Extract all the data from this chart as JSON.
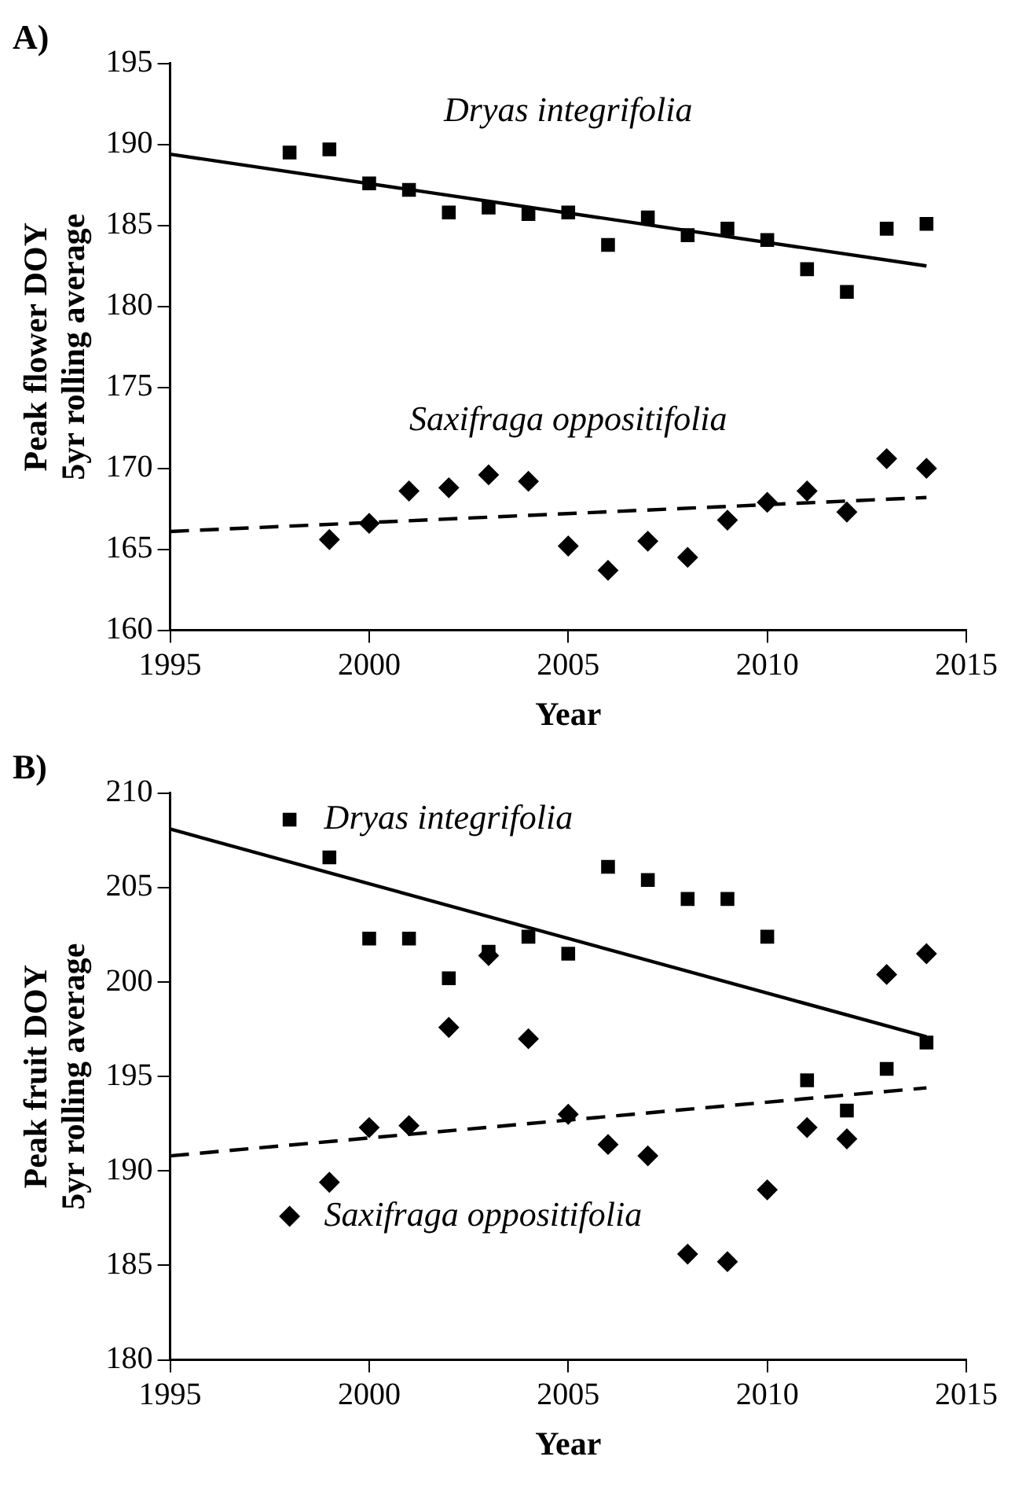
{
  "chart_data": [
    {
      "type": "scatter",
      "title": "A)",
      "xlabel": "Year",
      "ylabel": "Peak flower DOY\n5yr rolling average",
      "xlim": [
        1995,
        2015
      ],
      "xticks": [
        1995,
        2000,
        2005,
        2010,
        2015
      ],
      "ylim": [
        160,
        195
      ],
      "yticks": [
        160,
        165,
        170,
        175,
        180,
        185,
        190,
        195
      ],
      "grid": false,
      "legend": false,
      "series": [
        {
          "name": "Dryas integrifolia",
          "color": "#000000",
          "marker": "square",
          "x": [
            1998,
            1999,
            2000,
            2001,
            2002,
            2003,
            2004,
            2005,
            2006,
            2007,
            2008,
            2009,
            2010,
            2011,
            2012,
            2013,
            2014
          ],
          "values": [
            189.5,
            189.7,
            187.6,
            187.2,
            185.8,
            186.1,
            185.7,
            185.8,
            183.8,
            185.5,
            184.4,
            184.8,
            184.1,
            182.3,
            180.9,
            184.8,
            185.1
          ]
        },
        {
          "name": "Saxifraga oppositifolia",
          "color": "#000000",
          "marker": "diamond",
          "x": [
            1999,
            2000,
            2001,
            2002,
            2003,
            2004,
            2005,
            2006,
            2007,
            2008,
            2009,
            2010,
            2011,
            2012,
            2013,
            2014
          ],
          "values": [
            165.6,
            166.6,
            168.6,
            168.8,
            169.6,
            169.2,
            165.2,
            163.7,
            165.5,
            164.5,
            166.8,
            167.9,
            168.6,
            167.3,
            170.6,
            170.0
          ]
        },
        {
          "type": "line",
          "color": "#000000",
          "line_style": "solid",
          "marker": "none",
          "x": [
            1995,
            2014
          ],
          "values": [
            189.4,
            182.5
          ]
        },
        {
          "type": "line",
          "color": "#000000",
          "line_style": "dashed",
          "marker": "none",
          "x": [
            1995,
            2014
          ],
          "values": [
            166.1,
            168.2
          ]
        }
      ]
    },
    {
      "type": "scatter",
      "title": "B)",
      "xlabel": "Year",
      "ylabel": "Peak fruit DOY\n5yr rolling average",
      "xlim": [
        1995,
        2015
      ],
      "xticks": [
        1995,
        2000,
        2005,
        2010,
        2015
      ],
      "ylim": [
        180,
        210
      ],
      "yticks": [
        180,
        185,
        190,
        195,
        200,
        205,
        210
      ],
      "grid": false,
      "legend": false,
      "series": [
        {
          "name": "Dryas integrifolia",
          "color": "#000000",
          "marker": "square",
          "x": [
            1998,
            1999,
            2000,
            2001,
            2002,
            2003,
            2004,
            2005,
            2006,
            2007,
            2008,
            2009,
            2010,
            2011,
            2012,
            2013,
            2014
          ],
          "values": [
            208.6,
            206.6,
            202.3,
            202.3,
            200.2,
            201.6,
            202.4,
            201.5,
            206.1,
            205.4,
            204.4,
            204.4,
            202.4,
            194.8,
            193.2,
            195.4,
            196.8
          ]
        },
        {
          "name": "Saxifraga oppositifolia",
          "color": "#000000",
          "marker": "diamond",
          "x": [
            1998,
            1999,
            2000,
            2001,
            2002,
            2003,
            2004,
            2005,
            2006,
            2007,
            2008,
            2009,
            2010,
            2011,
            2012,
            2013,
            2014
          ],
          "values": [
            187.6,
            189.4,
            192.3,
            192.4,
            197.6,
            201.4,
            197.0,
            193.0,
            191.4,
            190.8,
            185.6,
            185.2,
            189.0,
            192.3,
            191.7,
            200.4,
            201.5
          ]
        },
        {
          "type": "line",
          "color": "#000000",
          "line_style": "solid",
          "marker": "none",
          "x": [
            1995,
            2014
          ],
          "values": [
            208.1,
            197.1
          ]
        },
        {
          "type": "line",
          "color": "#000000",
          "line_style": "dashed",
          "marker": "none",
          "x": [
            1995,
            2014
          ],
          "values": [
            190.8,
            194.4
          ]
        }
      ]
    }
  ]
}
